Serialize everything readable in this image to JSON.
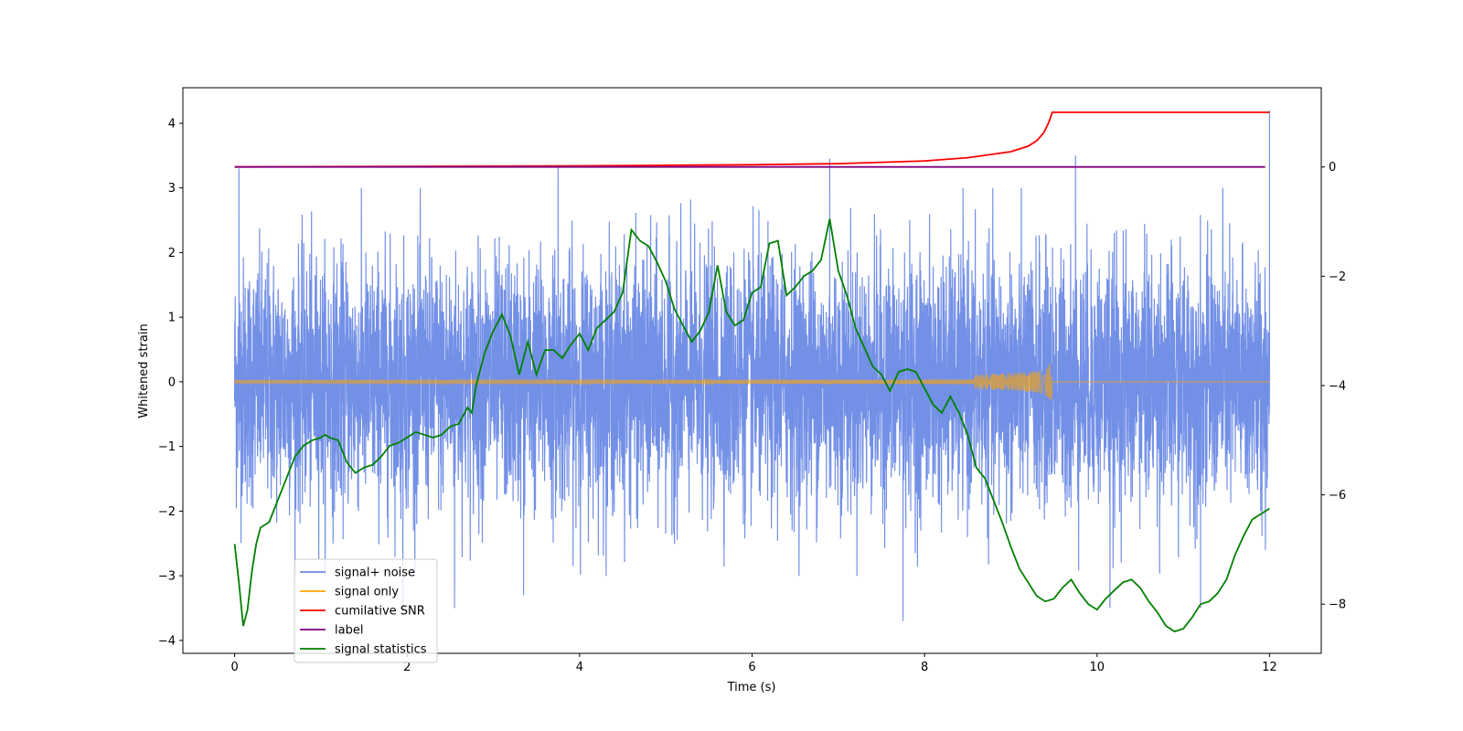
{
  "chart_data": {
    "type": "line",
    "xlabel": "Time (s)",
    "ylabel": "Whitened strain",
    "xlim": [
      -0.6,
      12.6
    ],
    "ylim": [
      -4.2,
      4.55
    ],
    "y2lim": [
      -8.9,
      1.45
    ],
    "x_ticks": [
      "0",
      "2",
      "4",
      "6",
      "8",
      "10",
      "12"
    ],
    "x_tick_values": [
      0,
      2,
      4,
      6,
      8,
      10,
      12
    ],
    "y_ticks": [
      "−4",
      "−3",
      "−2",
      "−1",
      "0",
      "1",
      "2",
      "3",
      "4"
    ],
    "y_tick_values": [
      -4,
      -3,
      -2,
      -1,
      0,
      1,
      2,
      3,
      4
    ],
    "y2_ticks": [
      "−8",
      "−6",
      "−4",
      "−2",
      "0"
    ],
    "y2_tick_values": [
      -8,
      -6,
      -4,
      -2,
      0
    ],
    "grid": false,
    "legend_position": "lower-left",
    "colors": {
      "signal_noise": "#6b8ae6",
      "signal_only": "#ffa500",
      "cumulative_snr": "#ff0000",
      "label": "#800080",
      "signal_statistics": "#008000"
    },
    "series": [
      {
        "name": "signal+ noise",
        "axis": "left",
        "description_envelope": {
          "x_range": [
            0,
            12
          ],
          "typical_amplitude": 1.3,
          "max_peaks": [
            [
              0.05,
              3.3
            ],
            [
              3.75,
              3.35
            ],
            [
              6.9,
              3.45
            ],
            [
              9.75,
              3.5
            ],
            [
              12.0,
              4.2
            ]
          ],
          "min_peaks": [
            [
              1.95,
              -3.55
            ],
            [
              2.55,
              -3.5
            ],
            [
              3.35,
              -3.3
            ],
            [
              7.75,
              -3.7
            ],
            [
              10.15,
              -3.5
            ],
            [
              11.2,
              -3.5
            ]
          ]
        }
      },
      {
        "name": "signal only",
        "axis": "left",
        "chirp": {
          "start": 0,
          "merger": 9.48,
          "end": 12,
          "peak_amplitude": 0.48
        }
      },
      {
        "name": "cumilative SNR",
        "axis": "right",
        "x": [
          0,
          2,
          4,
          6,
          7,
          8,
          8.5,
          9,
          9.2,
          9.3,
          9.38,
          9.43,
          9.46,
          9.48,
          9.5,
          12
        ],
        "values": [
          0,
          0.01,
          0.02,
          0.04,
          0.06,
          0.11,
          0.17,
          0.28,
          0.38,
          0.48,
          0.62,
          0.78,
          0.9,
          1.0,
          1.0,
          1.0
        ]
      },
      {
        "name": "label",
        "axis": "right",
        "x": [
          0,
          11.95
        ],
        "values": [
          0,
          0
        ]
      },
      {
        "name": "signal statistics",
        "axis": "right",
        "x": [
          0,
          0.05,
          0.1,
          0.15,
          0.2,
          0.25,
          0.3,
          0.4,
          0.5,
          0.6,
          0.7,
          0.8,
          0.9,
          1.0,
          1.05,
          1.1,
          1.2,
          1.3,
          1.4,
          1.5,
          1.6,
          1.7,
          1.8,
          1.9,
          2.0,
          2.1,
          2.2,
          2.3,
          2.4,
          2.5,
          2.6,
          2.7,
          2.75,
          2.8,
          2.9,
          3.0,
          3.1,
          3.2,
          3.3,
          3.4,
          3.5,
          3.6,
          3.7,
          3.8,
          3.9,
          4.0,
          4.1,
          4.2,
          4.3,
          4.4,
          4.5,
          4.6,
          4.7,
          4.8,
          4.9,
          5.0,
          5.1,
          5.2,
          5.3,
          5.4,
          5.5,
          5.6,
          5.7,
          5.8,
          5.9,
          6.0,
          6.1,
          6.2,
          6.3,
          6.4,
          6.5,
          6.6,
          6.7,
          6.8,
          6.9,
          7.0,
          7.1,
          7.2,
          7.3,
          7.4,
          7.5,
          7.6,
          7.7,
          7.8,
          7.9,
          8.0,
          8.1,
          8.2,
          8.3,
          8.4,
          8.5,
          8.6,
          8.7,
          8.8,
          8.9,
          9.0,
          9.1,
          9.2,
          9.3,
          9.4,
          9.5,
          9.6,
          9.7,
          9.8,
          9.9,
          10.0,
          10.1,
          10.2,
          10.3,
          10.4,
          10.5,
          10.6,
          10.7,
          10.8,
          10.9,
          11.0,
          11.1,
          11.2,
          11.3,
          11.4,
          11.5,
          11.6,
          11.7,
          11.8,
          11.9,
          12.0
        ],
        "values": [
          -6.9,
          -7.6,
          -8.4,
          -8.1,
          -7.4,
          -6.9,
          -6.6,
          -6.5,
          -6.1,
          -5.7,
          -5.3,
          -5.1,
          -5.0,
          -4.95,
          -4.9,
          -4.95,
          -5.0,
          -5.4,
          -5.6,
          -5.5,
          -5.45,
          -5.3,
          -5.1,
          -5.05,
          -4.95,
          -4.85,
          -4.9,
          -4.95,
          -4.9,
          -4.75,
          -4.7,
          -4.4,
          -4.5,
          -4.0,
          -3.4,
          -3.0,
          -2.7,
          -3.1,
          -3.8,
          -3.2,
          -3.8,
          -3.35,
          -3.35,
          -3.5,
          -3.25,
          -3.05,
          -3.35,
          -2.95,
          -2.8,
          -2.65,
          -2.3,
          -1.15,
          -1.35,
          -1.45,
          -1.75,
          -2.1,
          -2.6,
          -2.9,
          -3.2,
          -3.0,
          -2.65,
          -1.8,
          -2.65,
          -2.9,
          -2.8,
          -2.3,
          -2.2,
          -1.4,
          -1.35,
          -2.35,
          -2.2,
          -2.0,
          -1.9,
          -1.7,
          -0.95,
          -1.9,
          -2.35,
          -2.95,
          -3.3,
          -3.65,
          -3.8,
          -4.1,
          -3.75,
          -3.7,
          -3.75,
          -4.05,
          -4.35,
          -4.5,
          -4.2,
          -4.5,
          -4.9,
          -5.5,
          -5.7,
          -6.1,
          -6.5,
          -6.95,
          -7.35,
          -7.6,
          -7.85,
          -7.95,
          -7.9,
          -7.7,
          -7.55,
          -7.8,
          -8.0,
          -8.1,
          -7.9,
          -7.75,
          -7.6,
          -7.55,
          -7.7,
          -7.95,
          -8.15,
          -8.4,
          -8.5,
          -8.45,
          -8.25,
          -8.0,
          -7.95,
          -7.8,
          -7.55,
          -7.1,
          -6.75,
          -6.45,
          -6.35,
          -6.25
        ]
      }
    ]
  },
  "legend": {
    "items": [
      {
        "label": "signal+ noise",
        "color": "#6b8ae6"
      },
      {
        "label": "signal only",
        "color": "#ffa500"
      },
      {
        "label": "cumilative SNR",
        "color": "#ff0000"
      },
      {
        "label": "label",
        "color": "#800080"
      },
      {
        "label": "signal statistics",
        "color": "#008000"
      }
    ]
  }
}
